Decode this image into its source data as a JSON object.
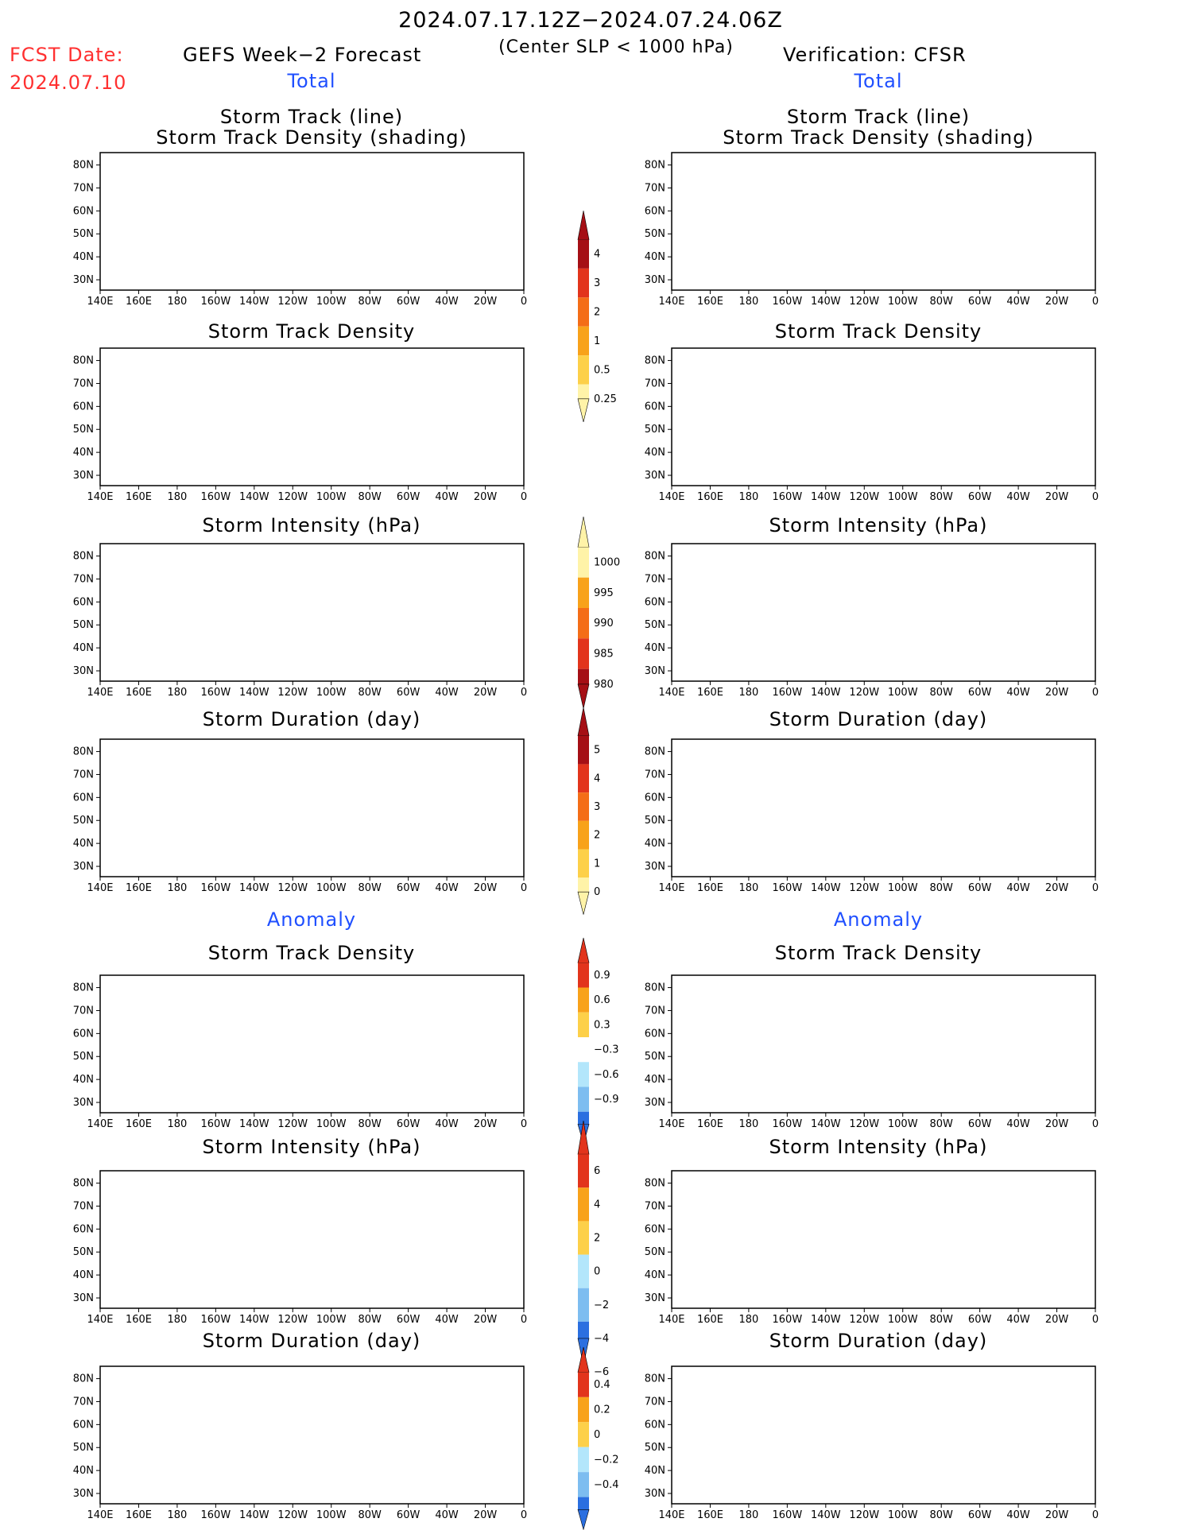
{
  "header": {
    "date_range": "2024.07.17.12Z−2024.07.24.06Z",
    "fcst_label": "FCST Date:",
    "fcst_date": "2024.07.10",
    "left_title": "GEFS Week−2 Forecast",
    "subtitle": "(Center SLP < 1000 hPa)",
    "right_title": "Verification: CFSR",
    "total_left": "Total",
    "total_right": "Total",
    "anomaly_left": "Anomaly",
    "anomaly_right": "Anomaly"
  },
  "panels": {
    "row1_title_a": "Storm Track (line)",
    "row1_title_b": "Storm Track Density (shading)",
    "density": "Storm Track Density",
    "intensity": "Storm Intensity (hPa)",
    "duration": "Storm Duration (day)"
  },
  "axes": {
    "lat_labels": [
      "80N",
      "70N",
      "60N",
      "50N",
      "40N",
      "30N"
    ],
    "lon_labels": [
      "140E",
      "160E",
      "180",
      "160W",
      "140W",
      "120W",
      "100W",
      "80W",
      "60W",
      "40W",
      "20W",
      "0"
    ]
  },
  "colorbars": {
    "density": {
      "labels": [
        "4",
        "3",
        "2",
        "1",
        "0.5",
        "0.25"
      ],
      "colors": [
        "#a50f15",
        "#e2341c",
        "#f46d17",
        "#f8a21a",
        "#fdd049",
        "#fff3a8"
      ]
    },
    "intensity": {
      "labels": [
        "1000",
        "995",
        "990",
        "985",
        "980"
      ],
      "colors": [
        "#fff3a8",
        "#f8a21a",
        "#f46d17",
        "#e2341c",
        "#a50f15"
      ]
    },
    "duration": {
      "labels": [
        "5",
        "4",
        "3",
        "2",
        "1",
        "0"
      ],
      "colors": [
        "#a50f15",
        "#e2341c",
        "#f46d17",
        "#f8a21a",
        "#fdd049",
        "#fff3a8"
      ]
    },
    "anom_density": {
      "labels": [
        "0.9",
        "0.6",
        "0.3",
        "−0.3",
        "−0.6",
        "−0.9"
      ],
      "colors": [
        "#e2341c",
        "#f8a21a",
        "#fdd049",
        "#ffffff",
        "#b3e6fb",
        "#7dbdf0",
        "#2b6fe0"
      ]
    },
    "anom_intensity": {
      "labels": [
        "6",
        "4",
        "2",
        "0",
        "−2",
        "−4",
        "−6"
      ],
      "colors": [
        "#e2341c",
        "#f8a21a",
        "#fdd049",
        "#b3e6fb",
        "#7dbdf0",
        "#2b6fe0"
      ]
    },
    "anom_duration": {
      "labels": [
        "0.4",
        "0.2",
        "0",
        "−0.2",
        "−0.4"
      ],
      "colors": [
        "#e2341c",
        "#f8a21a",
        "#fdd049",
        "#b3e6fb",
        "#7dbdf0",
        "#2b6fe0"
      ]
    }
  },
  "colors": {
    "land_outline": "#000000",
    "track_blue": "#1e90ff",
    "track_orange": "#f39c12"
  }
}
